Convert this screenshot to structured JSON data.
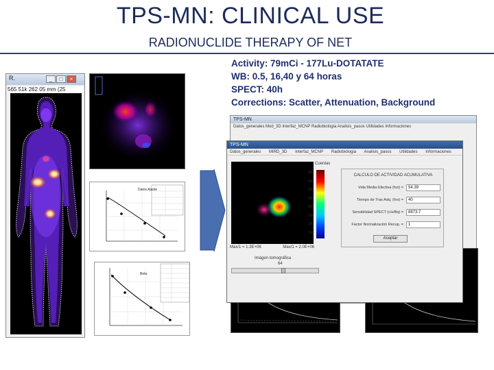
{
  "slide": {
    "title": "TPS-MN: CLINICAL USE",
    "subtitle": "RADIONUCLIDE THERAPY OF NET",
    "params": [
      "Activity: 79mCi - 177Lu-DOTATATE",
      "WB: 0.5, 16,40 y 64 horas",
      "SPECT: 40h",
      "Corrections: Scatter, Attenuation, Background"
    ]
  },
  "wb_window": {
    "title": "R.",
    "coords": "565 51k 262 05 mm (25"
  },
  "app_bg": {
    "title": "TPS-MN",
    "menu": "Datos_generales  Mod_3D  Interfaz_MCNP  Radiobiologia  Analisis_pasos  Utilidades  Informaciones"
  },
  "app": {
    "title": "TPS-MN",
    "menu": [
      "Datos_generales",
      "MIRD_3D",
      "Interfaz_MCNP",
      "Radiobiologia",
      "Analisis_pasos",
      "Utilidades",
      "Informaciones"
    ],
    "spect_footer": [
      "Max/1 = 1.3E+06",
      "Max/1 = 2.0E+06"
    ],
    "slider_label": "Imágen tomográfica",
    "slider_value": "64",
    "slider_fraction": 0.6,
    "calc": {
      "title": "CALCULO DE ACTIVIDAD ACUMULATIVA",
      "rows": [
        {
          "label": "Vida Media Efectiva (hrs) =",
          "value": "54.39"
        },
        {
          "label": "Tiempo de Tras Adq. (hrs) =",
          "value": "40"
        },
        {
          "label": "Sensibilidad SPECT (c/s/Bq) =",
          "value": "8873.7"
        },
        {
          "label": "Factor Normalización Recup. =",
          "value": "1"
        }
      ],
      "button": "Aceptar"
    }
  },
  "colorbar_ticks": [
    "Cuentas",
    "450",
    "400",
    "350",
    "300",
    "250",
    "200",
    "150",
    "100",
    "50"
  ],
  "fit_plot_1": {
    "legend": [
      "Datos Ajuste",
      "Valor",
      "A",
      "Beta",
      "Ad(h)"
    ],
    "label": "Datos Ajuste"
  },
  "fit_plot_2": {
    "label": "Beta",
    "legend_rows": [
      "Parametros Ajuste",
      "Valor",
      "a1",
      "a2",
      "k1",
      "k2",
      "Chi",
      "R2"
    ]
  },
  "colors": {
    "title_blue": "#1c2a5a",
    "param_blue": "#1f2f6e",
    "arrow_blue": "#4a6fb0"
  }
}
